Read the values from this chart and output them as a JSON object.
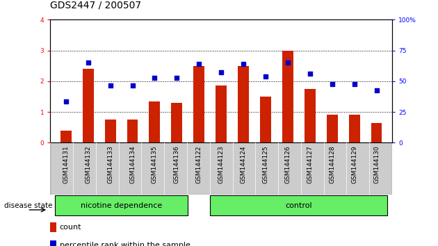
{
  "title": "GDS2447 / 200507",
  "categories": [
    "GSM144131",
    "GSM144132",
    "GSM144133",
    "GSM144134",
    "GSM144135",
    "GSM144136",
    "GSM144122",
    "GSM144123",
    "GSM144124",
    "GSM144125",
    "GSM144126",
    "GSM144127",
    "GSM144128",
    "GSM144129",
    "GSM144130"
  ],
  "bar_values": [
    0.4,
    2.4,
    0.75,
    0.75,
    1.35,
    1.3,
    2.5,
    1.85,
    2.5,
    1.5,
    3.0,
    1.75,
    0.9,
    0.9,
    0.65
  ],
  "dot_values": [
    1.35,
    2.6,
    1.85,
    1.85,
    2.1,
    2.1,
    2.55,
    2.3,
    2.55,
    2.15,
    2.6,
    2.25,
    1.9,
    1.9,
    1.7
  ],
  "bar_color": "#cc2200",
  "dot_color": "#0000cc",
  "ylim_left": [
    0,
    4
  ],
  "ylim_right": [
    0,
    100
  ],
  "yticks_left": [
    0,
    1,
    2,
    3,
    4
  ],
  "yticks_right": [
    0,
    25,
    50,
    75,
    100
  ],
  "yticklabels_right": [
    "0",
    "25",
    "50",
    "75",
    "100%"
  ],
  "grid_style": "dotted",
  "bar_width": 0.5,
  "group_label_nicotine": "nicotine dependence",
  "group_label_control": "control",
  "group_bg_color": "#66ee66",
  "disease_state_label": "disease state",
  "legend_count_label": "count",
  "legend_pct_label": "percentile rank within the sample",
  "tick_label_bg": "#cccccc",
  "title_fontsize": 10,
  "tick_fontsize": 6.5,
  "legend_fontsize": 8
}
